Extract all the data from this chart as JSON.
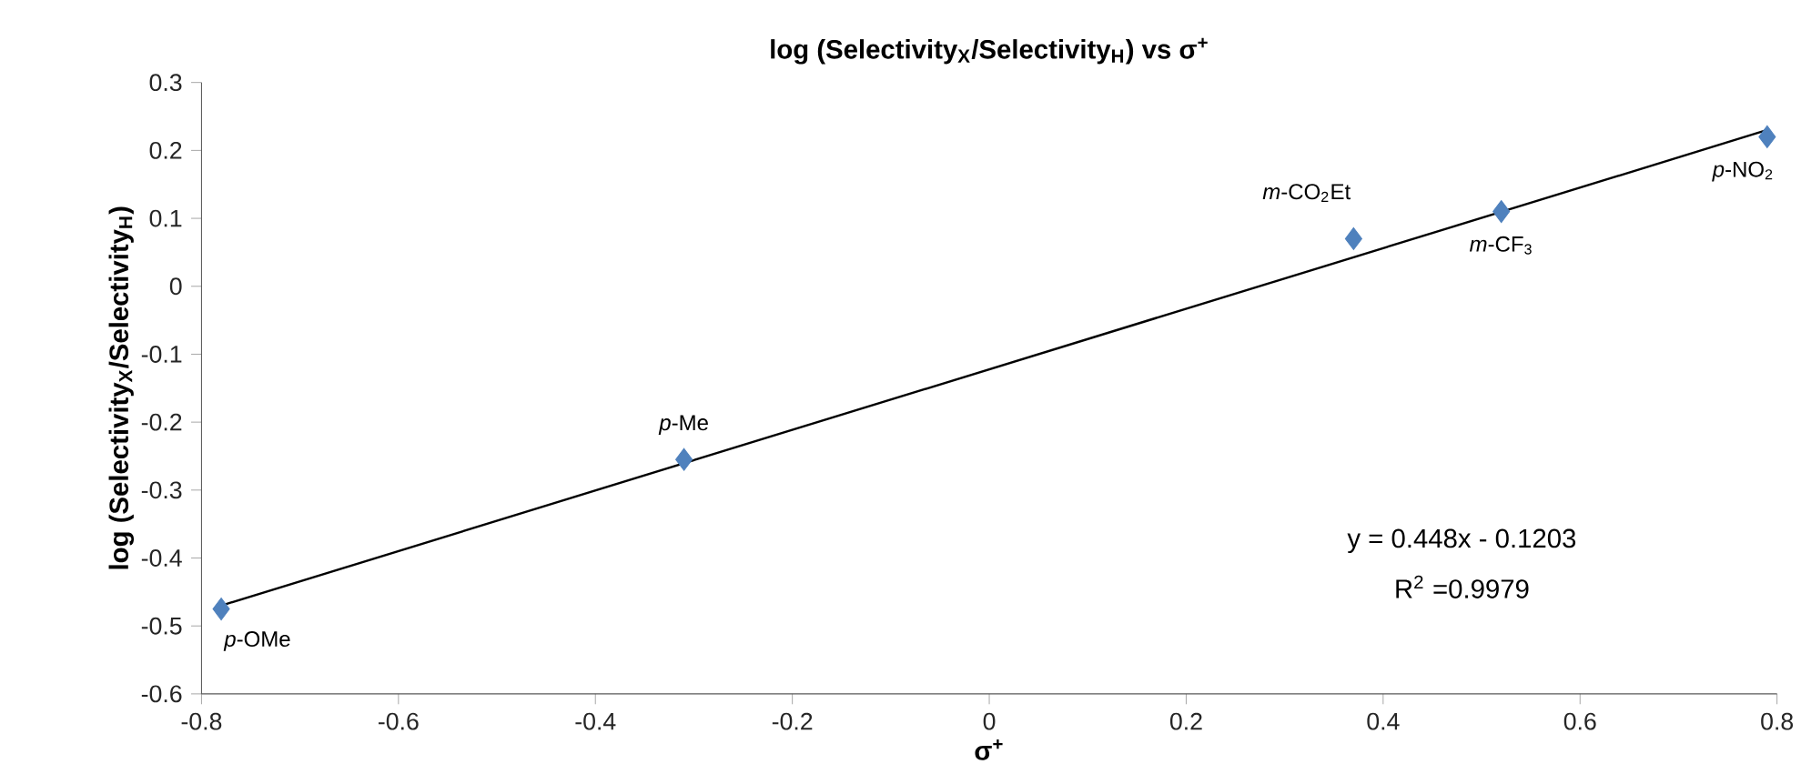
{
  "chart_data": {
    "type": "scatter",
    "title": "log (Selectivity$_{X}$/Selectivity$_{H}$) vs σ$^{+}$",
    "xlabel": "σ$^{+}$",
    "ylabel": "log (Selectivity$_{X}$/Selectivity$_{H}$)",
    "x": [
      -0.78,
      -0.31,
      0.37,
      0.52,
      0.79
    ],
    "series": [
      {
        "color": "#4f81bd",
        "marker": "diamond",
        "values": [
          -0.475,
          -0.255,
          0.07,
          0.11,
          0.22
        ]
      },
      {
        "type": "line",
        "color": "#000000",
        "marker": "none",
        "line_style": "solid",
        "x": [
          -0.78,
          0.79
        ],
        "values": [
          -0.47,
          0.23
        ]
      }
    ],
    "xlim": [
      -0.8,
      0.8
    ],
    "xticks": [
      -0.8,
      -0.6,
      -0.4,
      -0.2,
      0,
      0.2,
      0.4,
      0.6,
      0.8
    ],
    "ylim": [
      -0.6,
      0.3
    ],
    "yticks": [
      -0.6,
      -0.5,
      -0.4,
      -0.3,
      -0.2,
      -0.1,
      0,
      0.1,
      0.2,
      0.3
    ],
    "grid": false,
    "annotations": [
      {
        "text": "*p*-OMe",
        "x": -0.78,
        "y": -0.475
      },
      {
        "text": "*p*-Me",
        "x": -0.31,
        "y": -0.255
      },
      {
        "text": "*m*-CO$_{2}$Et",
        "x": 0.37,
        "y": 0.07
      },
      {
        "text": "*m*-CF$_{3}$",
        "x": 0.52,
        "y": 0.11
      },
      {
        "text": "*p*-NO$_{2}$",
        "x": 0.79,
        "y": 0.22
      },
      "y = 0.448x - 0.1203",
      "R$^{2}$ =0.9979"
    ]
  }
}
